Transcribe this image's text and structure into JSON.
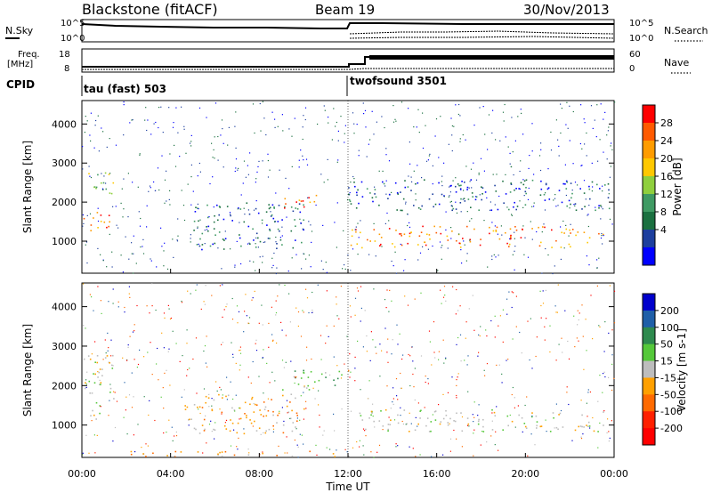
{
  "header": {
    "radar": "Blackstone (fitACF)",
    "beam": "Beam 19",
    "date": "30/Nov/2013"
  },
  "nsky_panel": {
    "left_label": "N.Sky",
    "left_ticks": [
      "10^5",
      "10^0"
    ],
    "right_ticks": [
      "10^5",
      "10^0"
    ],
    "right_label": "N.Search"
  },
  "freq_panel": {
    "left_label_1": "Freq.",
    "left_label_2": "[MHz]",
    "left_ticks": [
      "18",
      "8"
    ],
    "right_ticks": [
      "60",
      "0"
    ],
    "right_label": "Nave"
  },
  "cpid": {
    "label": "CPID",
    "program_1": "tau (fast) 503",
    "program_2": "twofsound 3501",
    "switch_time_hours": 12
  },
  "chart_data": [
    {
      "type": "heatmap",
      "title": "",
      "quantity": "Power",
      "xlabel": "",
      "ylabel": "Slant Range [km]",
      "x_range_hours": [
        0,
        24
      ],
      "ylim": [
        180,
        4600
      ],
      "y_ticks": [
        "4000",
        "3000",
        "2000",
        "1000"
      ],
      "colorbar": {
        "label": "Power [dB]",
        "ticks": [
          "28",
          "24",
          "20",
          "16",
          "12",
          "8",
          "4"
        ],
        "colors": [
          "#ff0000",
          "#ff5a00",
          "#ff9c00",
          "#ffc800",
          "#8fcf3d",
          "#3f9a63",
          "#1b7040",
          "#1d3f9e",
          "#0000ff"
        ]
      },
      "echo_regions": [
        {
          "name": "near-range-band",
          "t0": 0.0,
          "t1": 1.3,
          "r0": 1150,
          "r1": 1800,
          "level": "high"
        },
        {
          "name": "early-high-patch",
          "t0": 0.0,
          "t1": 1.5,
          "r0": 2200,
          "r1": 2800,
          "level": "medium"
        },
        {
          "name": "morning-rising-streak",
          "t0": 5.0,
          "t1": 10.0,
          "r0": 800,
          "r1": 2000,
          "level": "low"
        },
        {
          "name": "midday-strong-patch",
          "t0": 9.0,
          "t1": 11.0,
          "r0": 1850,
          "r1": 2200,
          "level": "high"
        },
        {
          "name": "afternoon-band",
          "t0": 12.0,
          "t1": 23.5,
          "r0": 850,
          "r1": 1400,
          "level": "high"
        },
        {
          "name": "afternoon-upper-scatter",
          "t0": 12.0,
          "t1": 24.0,
          "r0": 1800,
          "r1": 2600,
          "level": "low"
        }
      ]
    },
    {
      "type": "heatmap",
      "title": "",
      "quantity": "Velocity",
      "xlabel": "Time UT",
      "ylabel": "Slant Range [km]",
      "x_range_hours": [
        0,
        24
      ],
      "x_ticks": [
        "00:00",
        "04:00",
        "08:00",
        "12:00",
        "16:00",
        "20:00",
        "00:00"
      ],
      "ylim": [
        180,
        4600
      ],
      "y_ticks": [
        "4000",
        "3000",
        "2000",
        "1000"
      ],
      "colorbar": {
        "label": "Velocity [m s-1]",
        "ticks": [
          "200",
          "100",
          "50",
          "15",
          "-15",
          "-50",
          "-100",
          "-200"
        ],
        "colors": [
          "#0000cc",
          "#1f5fa8",
          "#2e8a4e",
          "#55c83a",
          "#bdbdbd",
          "#ffa000",
          "#ff6a00",
          "#ff2000",
          "#ff0000"
        ]
      },
      "echo_regions": [
        {
          "name": "early-grey-band",
          "t0": 0.0,
          "t1": 1.5,
          "r0": 1150,
          "r1": 2800,
          "level": "near-zero"
        },
        {
          "name": "morning-orange-band",
          "t0": 4.5,
          "t1": 10.0,
          "r0": 800,
          "r1": 1800,
          "level": "negative"
        },
        {
          "name": "ground-orange-strip",
          "t0": 2.0,
          "t1": 12.0,
          "r0": 200,
          "r1": 350,
          "level": "negative"
        },
        {
          "name": "midday-green-patch",
          "t0": 9.0,
          "t1": 12.0,
          "r0": 1900,
          "r1": 2400,
          "level": "positive"
        },
        {
          "name": "afternoon-grey-band",
          "t0": 12.5,
          "t1": 23.5,
          "r0": 850,
          "r1": 1400,
          "level": "near-zero"
        }
      ]
    }
  ]
}
